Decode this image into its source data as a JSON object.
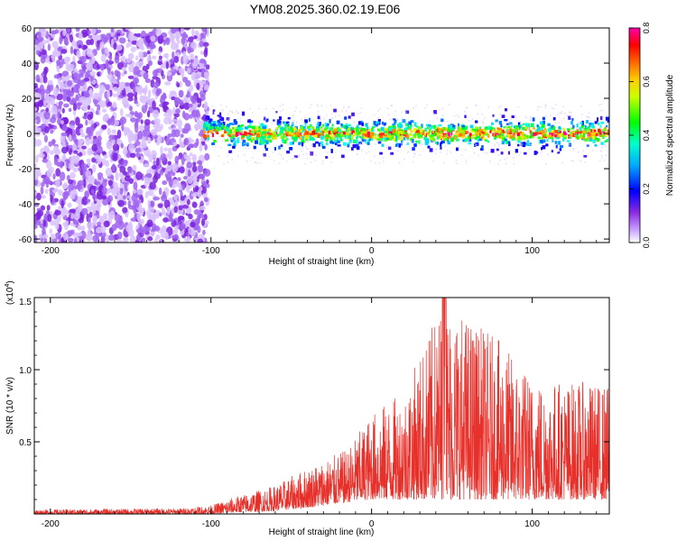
{
  "title": "YM08.2025.360.02.19.E06",
  "colors": {
    "frame": "#000000",
    "snr_line": "#e8302a",
    "grid_tick": "#000000",
    "background": "#ffffff"
  },
  "chart_data": [
    {
      "type": "heatmap",
      "id": "spectrogram",
      "title": "",
      "xlabel": "Height of straight line (km)",
      "ylabel": "Frequency (Hz)",
      "xlim": [
        -210,
        148
      ],
      "ylim": [
        -62,
        60
      ],
      "x_ticks": [
        -200,
        -100,
        0,
        100
      ],
      "y_ticks": [
        -60,
        -40,
        -20,
        0,
        20,
        40,
        60
      ],
      "grid": false,
      "description_regions": [
        {
          "x_range": [
            -210,
            -105
          ],
          "freq_range": [
            -62,
            60
          ],
          "amplitude": "low",
          "note": "broadband purple noise"
        },
        {
          "x_range": [
            -105,
            148
          ],
          "freq_range": [
            -15,
            15
          ],
          "amplitude": "0.1-0.8",
          "note": "narrow band centered near 0 Hz"
        }
      ],
      "colorbar": {
        "label": "Normalized spectral amplitude",
        "range": [
          0.0,
          0.8
        ],
        "ticks": [
          "0.0",
          "0.2",
          "0.4",
          "0.6",
          "0.8"
        ],
        "colormap": [
          "#ffffff",
          "#8a2be2",
          "#0000ff",
          "#00ffff",
          "#00ff00",
          "#ffff00",
          "#ff7f00",
          "#ff0000",
          "#ff00aa"
        ]
      }
    },
    {
      "type": "line",
      "id": "snr",
      "title": "",
      "xlabel": "Height of straight line (km)",
      "ylabel": "SNR (10 * v/v)",
      "y_multiplier_label": "(x10",
      "y_multiplier_exp": "4",
      "y_multiplier_close": ")",
      "xlim": [
        -210,
        148
      ],
      "ylim": [
        0,
        1.5
      ],
      "x_ticks": [
        -200,
        -100,
        0,
        100
      ],
      "y_ticks": [
        0.5,
        1.0,
        1.5
      ],
      "y_tick_labels": [
        "0.5",
        "1.0",
        "1.5"
      ],
      "grid": false,
      "series": [
        {
          "color": "#e8302a",
          "envelope": [
            {
              "x": -210,
              "y_low": 0.0,
              "y_high": 0.03
            },
            {
              "x": -120,
              "y_low": 0.0,
              "y_high": 0.04
            },
            {
              "x": -100,
              "y_low": 0.0,
              "y_high": 0.06
            },
            {
              "x": -85,
              "y_low": 0.01,
              "y_high": 0.12
            },
            {
              "x": -60,
              "y_low": 0.02,
              "y_high": 0.2
            },
            {
              "x": -35,
              "y_low": 0.05,
              "y_high": 0.35
            },
            {
              "x": -15,
              "y_low": 0.08,
              "y_high": 0.45
            },
            {
              "x": 0,
              "y_low": 0.1,
              "y_high": 0.7
            },
            {
              "x": 20,
              "y_low": 0.1,
              "y_high": 0.85
            },
            {
              "x": 45,
              "y_low": 0.1,
              "y_high": 1.5
            },
            {
              "x": 80,
              "y_low": 0.1,
              "y_high": 1.2
            },
            {
              "x": 100,
              "y_low": 0.1,
              "y_high": 0.95
            },
            {
              "x": 148,
              "y_low": 0.1,
              "y_high": 0.9
            }
          ]
        }
      ]
    }
  ]
}
